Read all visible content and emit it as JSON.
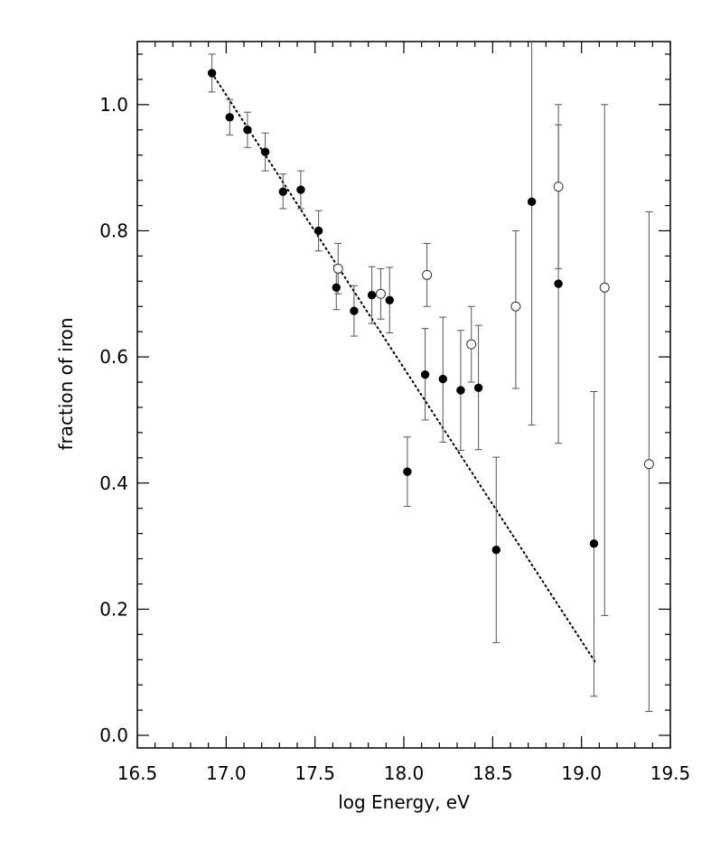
{
  "chart_data": {
    "type": "scatter",
    "title": "",
    "xlabel": "log Energy, eV",
    "ylabel": "fraction of iron",
    "xlim": [
      16.5,
      19.5
    ],
    "ylim": [
      -0.02,
      1.1
    ],
    "xticks": [
      16.5,
      17.0,
      17.5,
      18.0,
      18.5,
      19.0,
      19.5
    ],
    "xtick_labels": [
      "16.5",
      "17.0",
      "17.5",
      "18.0",
      "18.5",
      "19.0",
      "19.5"
    ],
    "yticks": [
      0.0,
      0.2,
      0.4,
      0.6,
      0.8,
      1.0
    ],
    "ytick_labels": [
      "0.0",
      "0.2",
      "0.4",
      "0.6",
      "0.8",
      "1.0"
    ],
    "x_minor_step": 0.1,
    "y_minor_step": 0.04,
    "grid": false,
    "series": [
      {
        "marker": "filled-circle",
        "points": [
          {
            "x": 16.92,
            "y": 1.05,
            "lo": 1.02,
            "hi": 1.08
          },
          {
            "x": 17.02,
            "y": 0.98,
            "lo": 0.952,
            "hi": 1.008
          },
          {
            "x": 17.12,
            "y": 0.96,
            "lo": 0.932,
            "hi": 0.988
          },
          {
            "x": 17.22,
            "y": 0.925,
            "lo": 0.895,
            "hi": 0.955
          },
          {
            "x": 17.32,
            "y": 0.862,
            "lo": 0.835,
            "hi": 0.89
          },
          {
            "x": 17.42,
            "y": 0.865,
            "lo": 0.835,
            "hi": 0.895
          },
          {
            "x": 17.52,
            "y": 0.8,
            "lo": 0.768,
            "hi": 0.832
          },
          {
            "x": 17.62,
            "y": 0.71,
            "lo": 0.675,
            "hi": 0.745
          },
          {
            "x": 17.72,
            "y": 0.673,
            "lo": 0.633,
            "hi": 0.713
          },
          {
            "x": 17.82,
            "y": 0.698,
            "lo": 0.653,
            "hi": 0.743
          },
          {
            "x": 17.92,
            "y": 0.69,
            "lo": 0.638,
            "hi": 0.742
          },
          {
            "x": 18.02,
            "y": 0.418,
            "lo": 0.363,
            "hi": 0.473
          },
          {
            "x": 18.12,
            "y": 0.572,
            "lo": 0.5,
            "hi": 0.645
          },
          {
            "x": 18.22,
            "y": 0.565,
            "lo": 0.465,
            "hi": 0.663
          },
          {
            "x": 18.32,
            "y": 0.547,
            "lo": 0.452,
            "hi": 0.642
          },
          {
            "x": 18.42,
            "y": 0.551,
            "lo": 0.453,
            "hi": 0.65
          },
          {
            "x": 18.52,
            "y": 0.294,
            "lo": 0.147,
            "hi": 0.441
          },
          {
            "x": 18.72,
            "y": 0.846,
            "lo": 0.492,
            "hi": 1.1
          },
          {
            "x": 18.87,
            "y": 0.716,
            "lo": 0.463,
            "hi": 0.968
          },
          {
            "x": 19.07,
            "y": 0.304,
            "lo": 0.062,
            "hi": 0.545
          }
        ]
      },
      {
        "marker": "open-circle",
        "points": [
          {
            "x": 17.63,
            "y": 0.74,
            "lo": 0.7,
            "hi": 0.78
          },
          {
            "x": 17.87,
            "y": 0.7,
            "lo": 0.66,
            "hi": 0.74
          },
          {
            "x": 18.13,
            "y": 0.73,
            "lo": 0.68,
            "hi": 0.78
          },
          {
            "x": 18.38,
            "y": 0.62,
            "lo": 0.56,
            "hi": 0.68
          },
          {
            "x": 18.63,
            "y": 0.68,
            "lo": 0.55,
            "hi": 0.8
          },
          {
            "x": 18.87,
            "y": 0.87,
            "lo": 0.74,
            "hi": 1.0
          },
          {
            "x": 19.13,
            "y": 0.71,
            "lo": 0.19,
            "hi": 1.0
          },
          {
            "x": 19.38,
            "y": 0.43,
            "lo": 0.038,
            "hi": 0.83
          }
        ]
      }
    ],
    "fit_line": {
      "style": "dotted",
      "x": [
        16.92,
        19.08
      ],
      "y": [
        1.05,
        0.115
      ]
    }
  }
}
